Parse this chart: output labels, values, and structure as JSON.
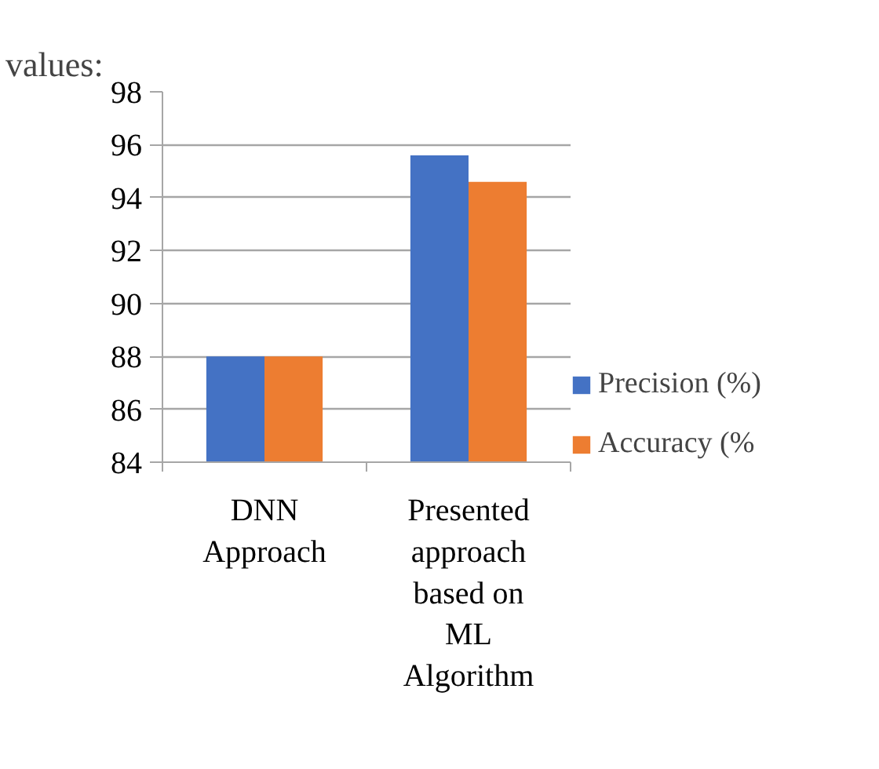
{
  "chart_data": {
    "type": "bar",
    "annotations": [
      "values:"
    ],
    "categories": [
      "DNN Approach",
      "Presented approach based on ML Algorithm"
    ],
    "series": [
      {
        "name": "Precision (%)",
        "color": "#4472c4",
        "values": [
          88,
          95.6
        ]
      },
      {
        "name": "Accuracy (%",
        "color": "#ed7d31",
        "values": [
          88,
          94.6
        ]
      }
    ],
    "ylim": [
      84,
      98
    ],
    "yticks": [
      84,
      86,
      88,
      90,
      92,
      94,
      96,
      98
    ],
    "grid": "y",
    "legend": "right"
  }
}
